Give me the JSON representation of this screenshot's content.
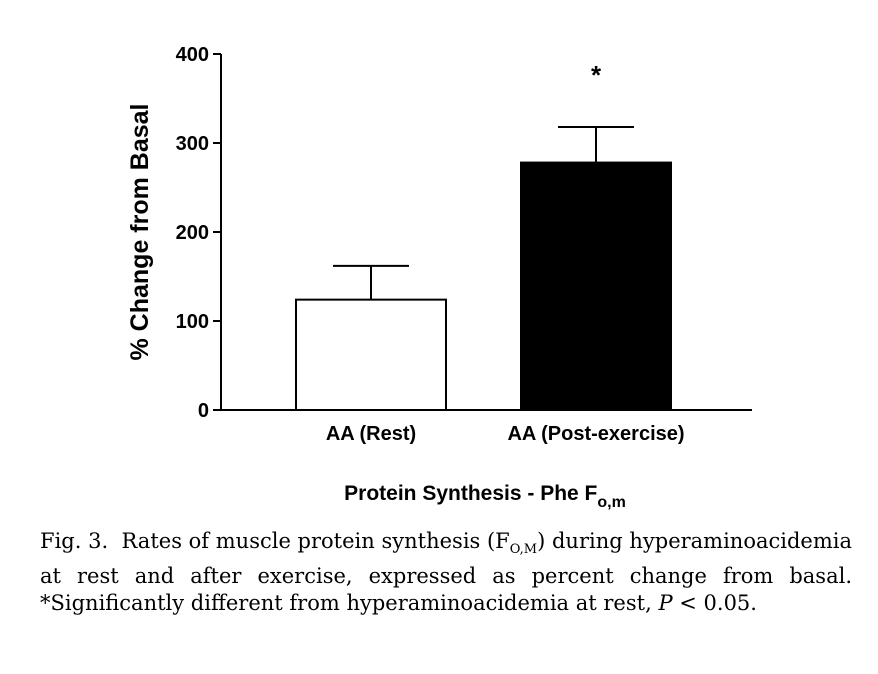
{
  "chart_data": {
    "type": "bar",
    "categories": [
      "AA (Rest)",
      "AA (Post-exercise)"
    ],
    "values": [
      124,
      278
    ],
    "errors": [
      38,
      40
    ],
    "bar_colors": [
      "#ffffff",
      "#000000"
    ],
    "significance_marks": [
      "",
      "*"
    ],
    "ylim": [
      0,
      400
    ],
    "yticks": [
      0,
      100,
      200,
      300,
      400
    ],
    "ylabel": "% Change from Basal",
    "xlabel": {
      "main": "Protein Synthesis - Phe F",
      "subscript": "o,m"
    }
  },
  "caption": {
    "label": "Fig. 3.",
    "text_1": "Rates of muscle protein synthesis (F",
    "sub": "O,M",
    "text_2": ") during hyperaminoacidemia at rest and after exercise, expressed as percent change from basal. *Significantly different from hyperaminoacidemia at rest,",
    "p_symbol": "P",
    "p_value": "< 0.05."
  }
}
